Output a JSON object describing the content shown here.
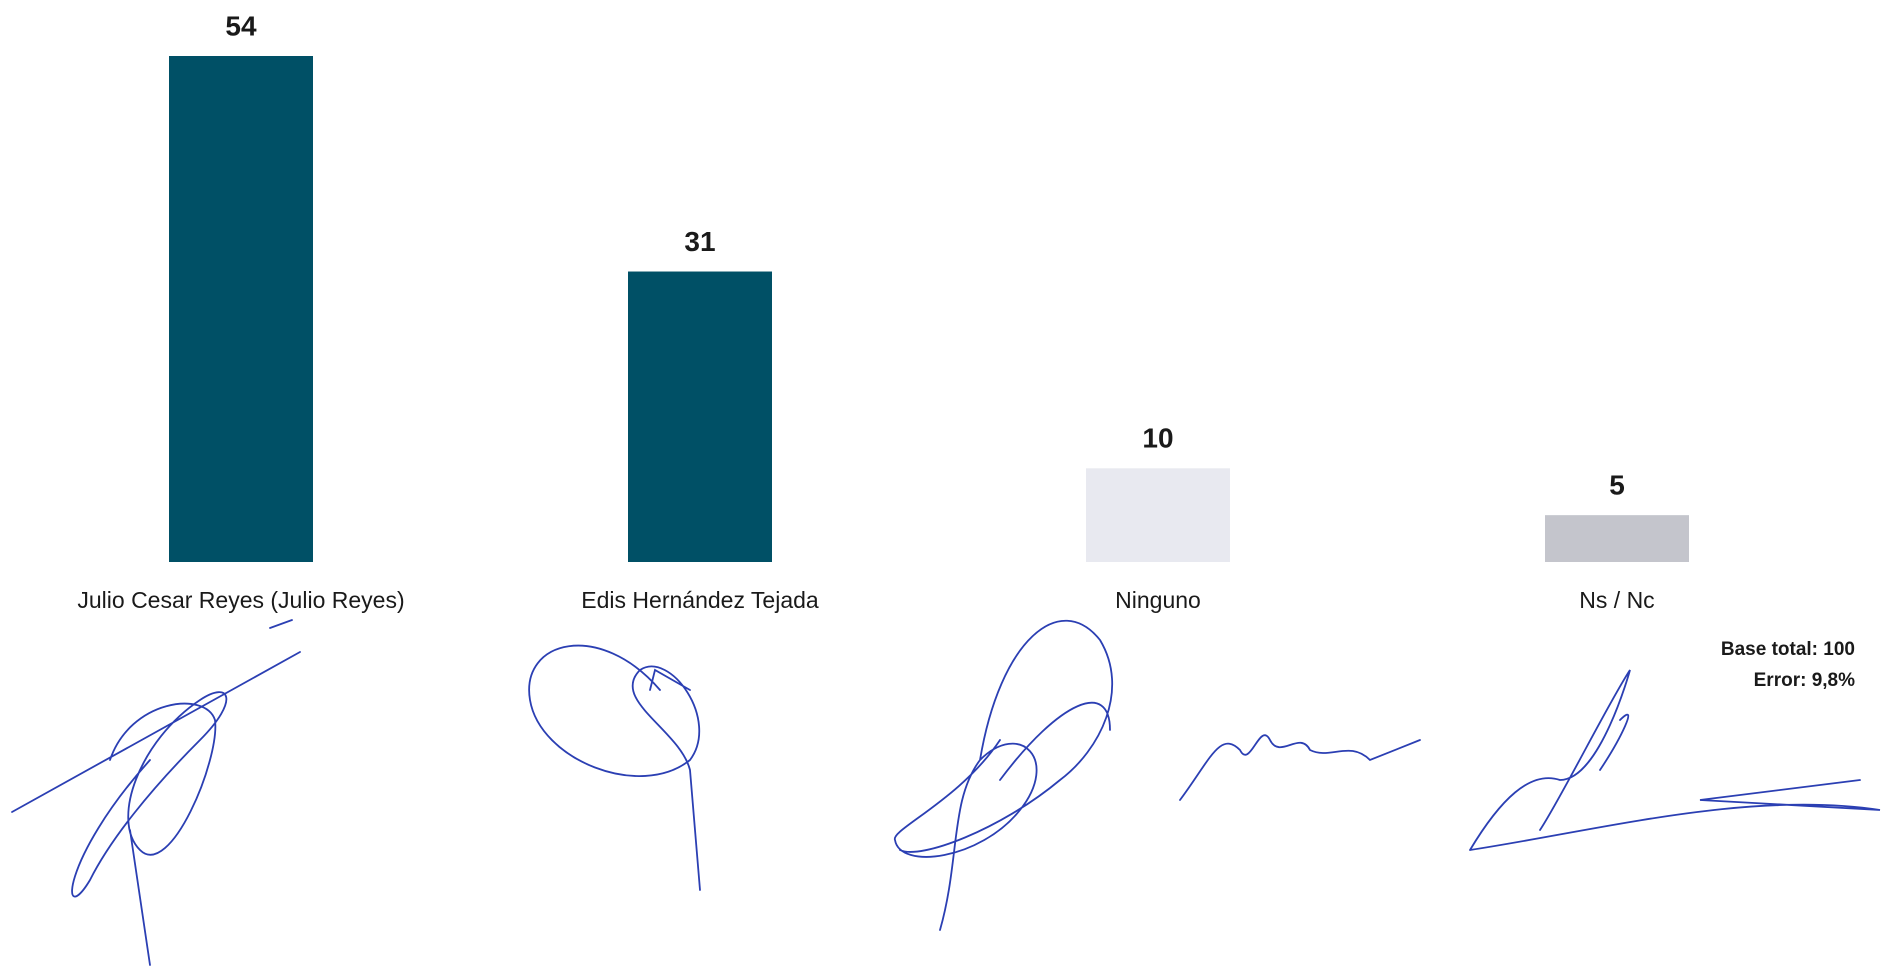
{
  "chart_data": {
    "type": "bar",
    "categories": [
      "Julio Cesar Reyes (Julio Reyes)",
      "Edis Hernández Tejada",
      "Ninguno",
      "Ns / Nc"
    ],
    "values": [
      54,
      31,
      10,
      5
    ],
    "colors": [
      "#005066",
      "#005066",
      "#e8e9f0",
      "#c4c5cc"
    ],
    "annotations": [
      "Base total: 100",
      "Error: 9,8%"
    ]
  }
}
